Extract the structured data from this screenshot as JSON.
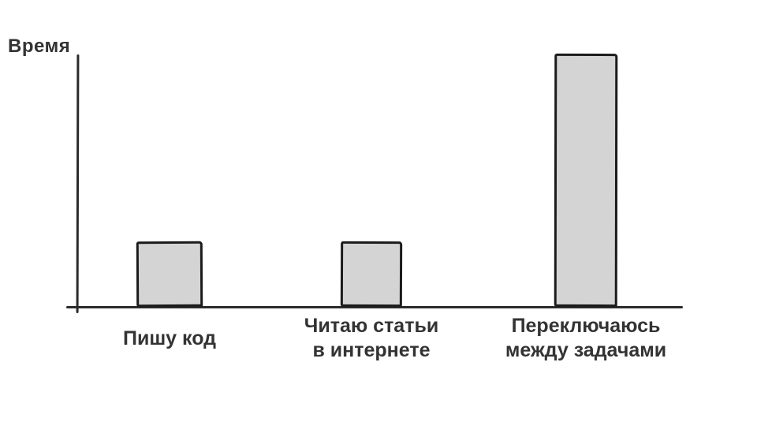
{
  "chart_data": {
    "type": "bar",
    "title": "",
    "xlabel": "",
    "ylabel": "Время",
    "categories": [
      "Пишу код",
      "Читаю статьи в интернете",
      "Переключаюсь между задачами"
    ],
    "values": [
      26,
      26,
      100
    ],
    "bars": [
      {
        "label_lines": [
          "Пишу код"
        ],
        "value": 26
      },
      {
        "label_lines": [
          "Читаю статьи",
          "в интернете"
        ],
        "value": 26
      },
      {
        "label_lines": [
          "Переключаюсь",
          "между задачами"
        ],
        "value": 100
      }
    ],
    "ylim": [
      0,
      100
    ],
    "value_scale": "relative, no numeric ticks shown",
    "grid": false,
    "legend": "none",
    "colors": {
      "background": "#ffffff",
      "bar_fill": "#d4d4d4",
      "bar_border": "#1b1b1b",
      "axis": "#2b2b2b",
      "text": "#333333"
    }
  }
}
